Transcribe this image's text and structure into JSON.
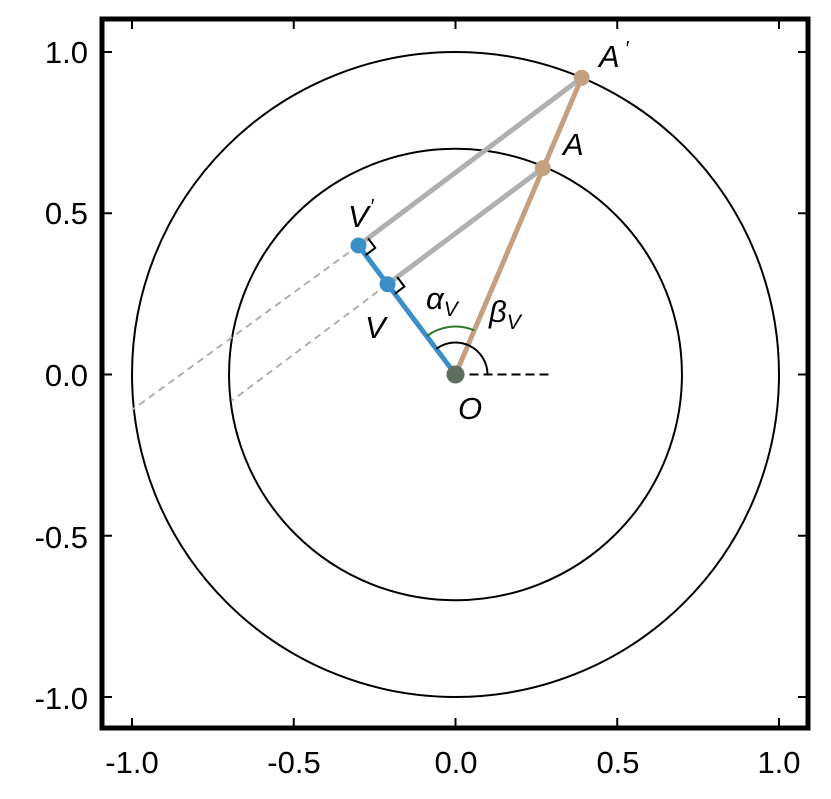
{
  "axes": {
    "xlim": [
      -1.1,
      1.1
    ],
    "ylim": [
      -1.1,
      1.1
    ],
    "x_ticks": [
      {
        "value": -1.0,
        "label": "-1.0"
      },
      {
        "value": -0.5,
        "label": "-0.5"
      },
      {
        "value": 0.0,
        "label": "0.0"
      },
      {
        "value": 0.5,
        "label": "0.5"
      },
      {
        "value": 1.0,
        "label": "1.0"
      }
    ],
    "y_ticks": [
      {
        "value": 1.0,
        "label": "1.0"
      },
      {
        "value": 0.5,
        "label": "0.5"
      },
      {
        "value": 0.0,
        "label": "0.0"
      },
      {
        "value": -0.5,
        "label": "-0.5"
      },
      {
        "value": -1.0,
        "label": "-1.0"
      }
    ]
  },
  "circles": [
    {
      "name": "inner-circle",
      "r": 0.7
    },
    {
      "name": "outer-circle",
      "r": 1.0
    }
  ],
  "points": {
    "O": {
      "x": 0.0,
      "y": 0.0
    },
    "V": {
      "x": -0.21,
      "y": 0.28
    },
    "V_prime": {
      "x": -0.3,
      "y": 0.4
    },
    "A": {
      "x": 0.27,
      "y": 0.64
    },
    "A_prime": {
      "x": 0.39,
      "y": 0.92
    }
  },
  "labels": {
    "O": "O",
    "V": "V",
    "V_prime_base": "V",
    "prime": "′",
    "A": "A",
    "A_prime_base": "A",
    "alpha": "α",
    "beta": "β",
    "sub_V": "V"
  },
  "colors": {
    "blue": "#3a8fc8",
    "tan": "#c4a080",
    "gray": "#b0b0b0",
    "origin": "#5e6e5e",
    "alpha_arc": "#2d7a2d",
    "black": "#000000"
  }
}
